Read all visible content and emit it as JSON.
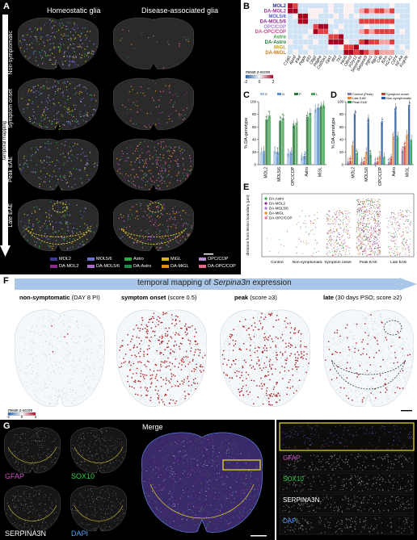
{
  "panels": {
    "A": {
      "label": "A",
      "col_left": "Homeostatic glia",
      "col_right": "Disease-associated glia",
      "stages": [
        "Non-symptomatic",
        "Symptom onset",
        "Peak EAE",
        "Late EAE"
      ],
      "arrow_label": "temporal mapping",
      "legend": [
        {
          "name": "MOL2",
          "color": "#3a3a9a"
        },
        {
          "name": "MOL5/6",
          "color": "#6f6fd0"
        },
        {
          "name": "Astro",
          "color": "#2fa84a"
        },
        {
          "name": "MiGL",
          "color": "#d6b320"
        },
        {
          "name": "OPC/COP",
          "color": "#b38fd6"
        },
        {
          "name": "DA-MOL2",
          "color": "#8a2a8a"
        },
        {
          "name": "DA-MOL5/6",
          "color": "#a86dc4"
        },
        {
          "name": "DA-Astro",
          "color": "#238a4e"
        },
        {
          "name": "DA-MiGL",
          "color": "#e08a20"
        },
        {
          "name": "DA-OPC/COP",
          "color": "#e06a8a"
        }
      ]
    },
    "B": {
      "label": "B",
      "rows": [
        "MOL2",
        "DA-MOL2",
        "MOL5/6",
        "DA-MOL5/6",
        "OPC/COP",
        "DA-OPC/COP",
        "Astro",
        "DA-Astro",
        "MiGL",
        "DA-MiGL"
      ],
      "row_colors": [
        "#2c2c8c",
        "#a0309a",
        "#5a5ac8",
        "#8c2c8c",
        "#a77cd4",
        "#c44a8a",
        "#2e9e3e",
        "#1f7a3a",
        "#c4a016",
        "#d07a10"
      ],
      "genes": [
        "C1ql1",
        "Apod",
        "Klk6",
        "Ptgds",
        "Il33",
        "Olig2",
        "Pdgfra",
        "Col20a1",
        "Gja1",
        "Ifit3",
        "Tlr2",
        "Hexb",
        "Olfml3",
        "P2ry12",
        "Serpina3n",
        "Serpina3i",
        "Irgm1",
        "Iigp1",
        "C4b",
        "B2m",
        "H2-K1",
        "Cd74",
        "H2-Aa",
        "Fcgr2b"
      ],
      "colorbar_title": "mean z-score",
      "colorbar_ticks": [
        "-2",
        "0",
        "2"
      ]
    },
    "C": {
      "label": "C",
      "ylabel": "% DA-genotype",
      "legend": [
        "S",
        "O",
        "P",
        "L"
      ]
    },
    "D": {
      "label": "D",
      "ylabel": "% DA-genotype",
      "legend": [
        "Control (Peak)",
        "Symptom onset",
        "Late EAE",
        "Non-symptomatic",
        "Peak EAE"
      ]
    },
    "E": {
      "label": "E",
      "ylabel": "distance from lesion boundary (µm)",
      "legend": [
        "DA-Astro",
        "DA-MOL2",
        "DA-MOL5/6",
        "DA-MiGL",
        "DA-OPC/COP"
      ],
      "xcats": [
        "Control",
        "Non-symptomatic",
        "Symptom onset",
        "Peak EAE",
        "Late EAE"
      ]
    },
    "F": {
      "label": "F",
      "banner_prefix": "temporal mapping of ",
      "banner_gene": "Serpina3n",
      "banner_suffix": " expression",
      "titles": [
        {
          "b": "non-symptomatic",
          "r": " (DAY 8 PI)"
        },
        {
          "b": "symptom onset",
          "r": " (score 0.5)"
        },
        {
          "b": "peak",
          "r": " (score ≥3)"
        },
        {
          "b": "late",
          "r": " (30 days PSO; score ≥2)"
        }
      ],
      "colorbar_title": "mean z-score",
      "colorbar_ticks": [
        "-2",
        "0",
        "2"
      ]
    },
    "G": {
      "label": "G",
      "channels": [
        "GFAP",
        "SOX10",
        "SERPINA3N",
        "DAPI"
      ],
      "merge": "Merge"
    },
    "H": {
      "label": "H",
      "channels": [
        "GFAP",
        "SOX10",
        "SERPINA3N",
        "DAPI"
      ]
    }
  },
  "chart_data": [
    {
      "type": "bar",
      "panel": "C",
      "categories": [
        "MOL2",
        "MOL5/6",
        "OPC/COP",
        "Astro",
        "MiGL"
      ],
      "series": [
        {
          "name": "S",
          "values": [
            20,
            22,
            18,
            12,
            88
          ]
        },
        {
          "name": "O",
          "values": [
            22,
            20,
            20,
            14,
            90
          ]
        },
        {
          "name": "P",
          "values": [
            72,
            70,
            62,
            76,
            92
          ]
        },
        {
          "name": "L",
          "values": [
            78,
            74,
            66,
            82,
            94
          ]
        }
      ],
      "ylabel": "% DA-genotype",
      "ylim": [
        0,
        100
      ]
    },
    {
      "type": "bar",
      "panel": "D",
      "categories": [
        "MOL2",
        "MOL5/6",
        "OPC/COP",
        "Astro",
        "MiGL"
      ],
      "series": [
        {
          "name": "Control (Peak)",
          "values": [
            4,
            4,
            4,
            4,
            22
          ]
        },
        {
          "name": "Non-symptomatic",
          "values": [
            6,
            5,
            5,
            10,
            30
          ]
        },
        {
          "name": "Symptom onset",
          "values": [
            30,
            20,
            14,
            45,
            48
          ]
        },
        {
          "name": "Peak EAE",
          "values": [
            80,
            72,
            68,
            90,
            95
          ]
        },
        {
          "name": "Late EAE",
          "values": [
            18,
            16,
            12,
            45,
            40
          ]
        }
      ],
      "ylabel": "% DA-genotype",
      "ylim": [
        0,
        100
      ]
    },
    {
      "type": "heatmap",
      "panel": "B",
      "rows": 10,
      "cols": 24
    }
  ]
}
